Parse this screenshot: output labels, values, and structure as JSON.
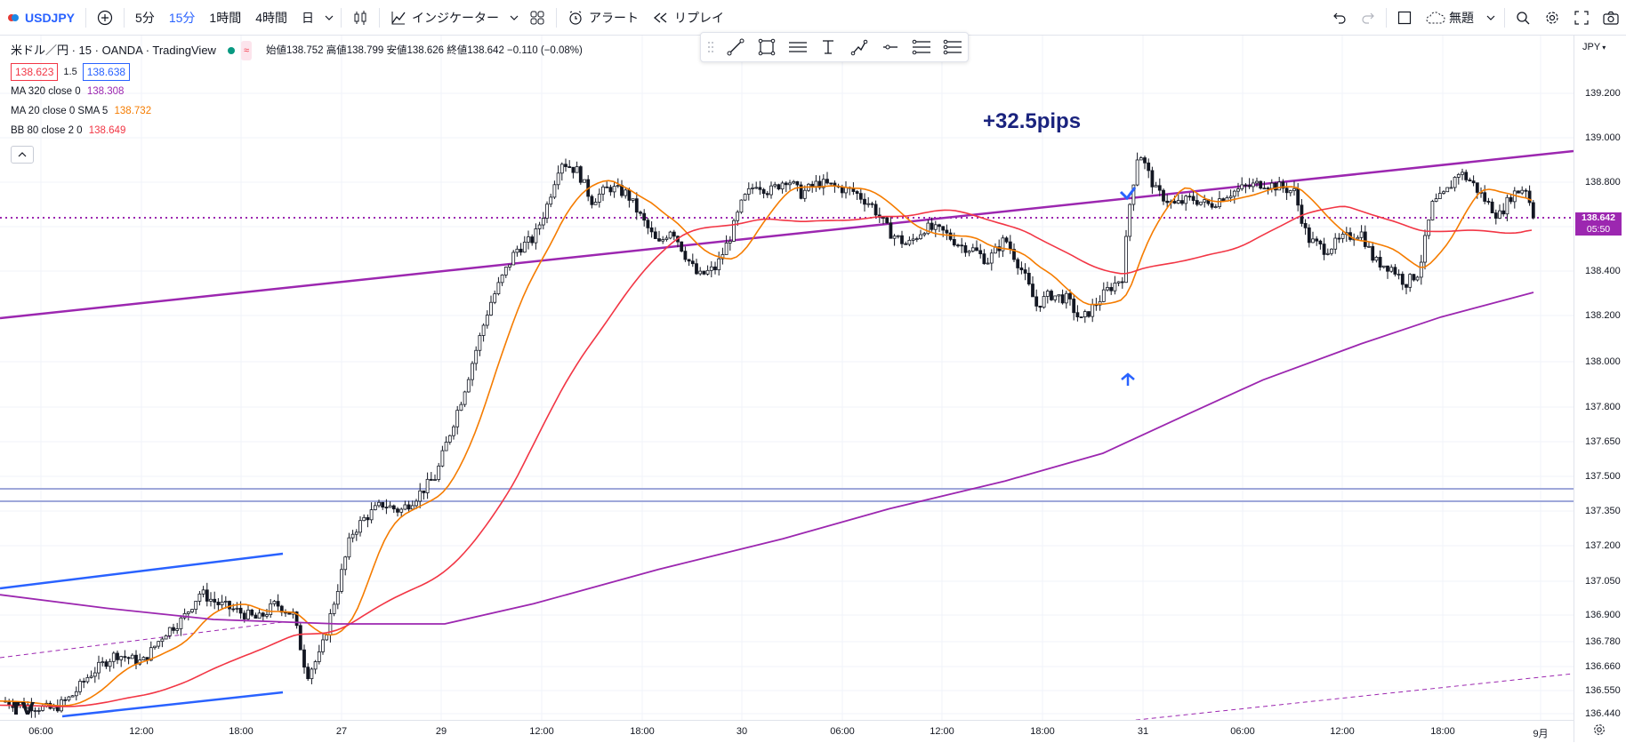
{
  "toolbar": {
    "symbol": "USDJPY",
    "intervals": [
      "5分",
      "15分",
      "1時間",
      "4時間",
      "日"
    ],
    "active_interval": "15分",
    "indicators_label": "インジケーター",
    "alert_label": "アラート",
    "replay_label": "リプレイ",
    "layout_name": "無題"
  },
  "legend": {
    "title": "米ドル／円 · 15 · OANDA · TradingView",
    "ohlc": "始値138.752 高値138.799 安値138.626 終値138.642 −0.110 (−0.08%)",
    "bid": "138.623",
    "spread": "1.5",
    "ask": "138.638",
    "indicators": [
      {
        "name": "MA 320 close 0",
        "value": "138.308",
        "color": "#9c27b0"
      },
      {
        "name": "MA 20 close 0 SMA 5",
        "value": "138.732",
        "color": "#f57c00"
      },
      {
        "name": "BB 80 close 2 0",
        "value": "138.649",
        "color": "#f23645"
      }
    ]
  },
  "chart_data": {
    "type": "candlestick",
    "symbol": "USDJPY",
    "interval": "15",
    "currency": "JPY",
    "price_ticks": [
      "139.200",
      "139.000",
      "138.800",
      "138.600",
      "138.400",
      "138.200",
      "138.000",
      "137.800",
      "137.650",
      "137.500",
      "137.350",
      "137.200",
      "137.050",
      "136.900",
      "136.780",
      "136.660",
      "136.550",
      "136.440"
    ],
    "time_ticks": [
      "06:00",
      "12:00",
      "18:00",
      "27",
      "29",
      "12:00",
      "18:00",
      "30",
      "06:00",
      "12:00",
      "18:00",
      "31",
      "06:00",
      "12:00",
      "18:00",
      "9月"
    ],
    "last_price": "138.642",
    "countdown": "05:50",
    "annotation": "+32.5pips",
    "colors": {
      "ma320": "#9c27b0",
      "ma20": "#f57c00",
      "bb": "#f23645",
      "channel": "#2962ff",
      "hline": "#9fa8da"
    }
  }
}
